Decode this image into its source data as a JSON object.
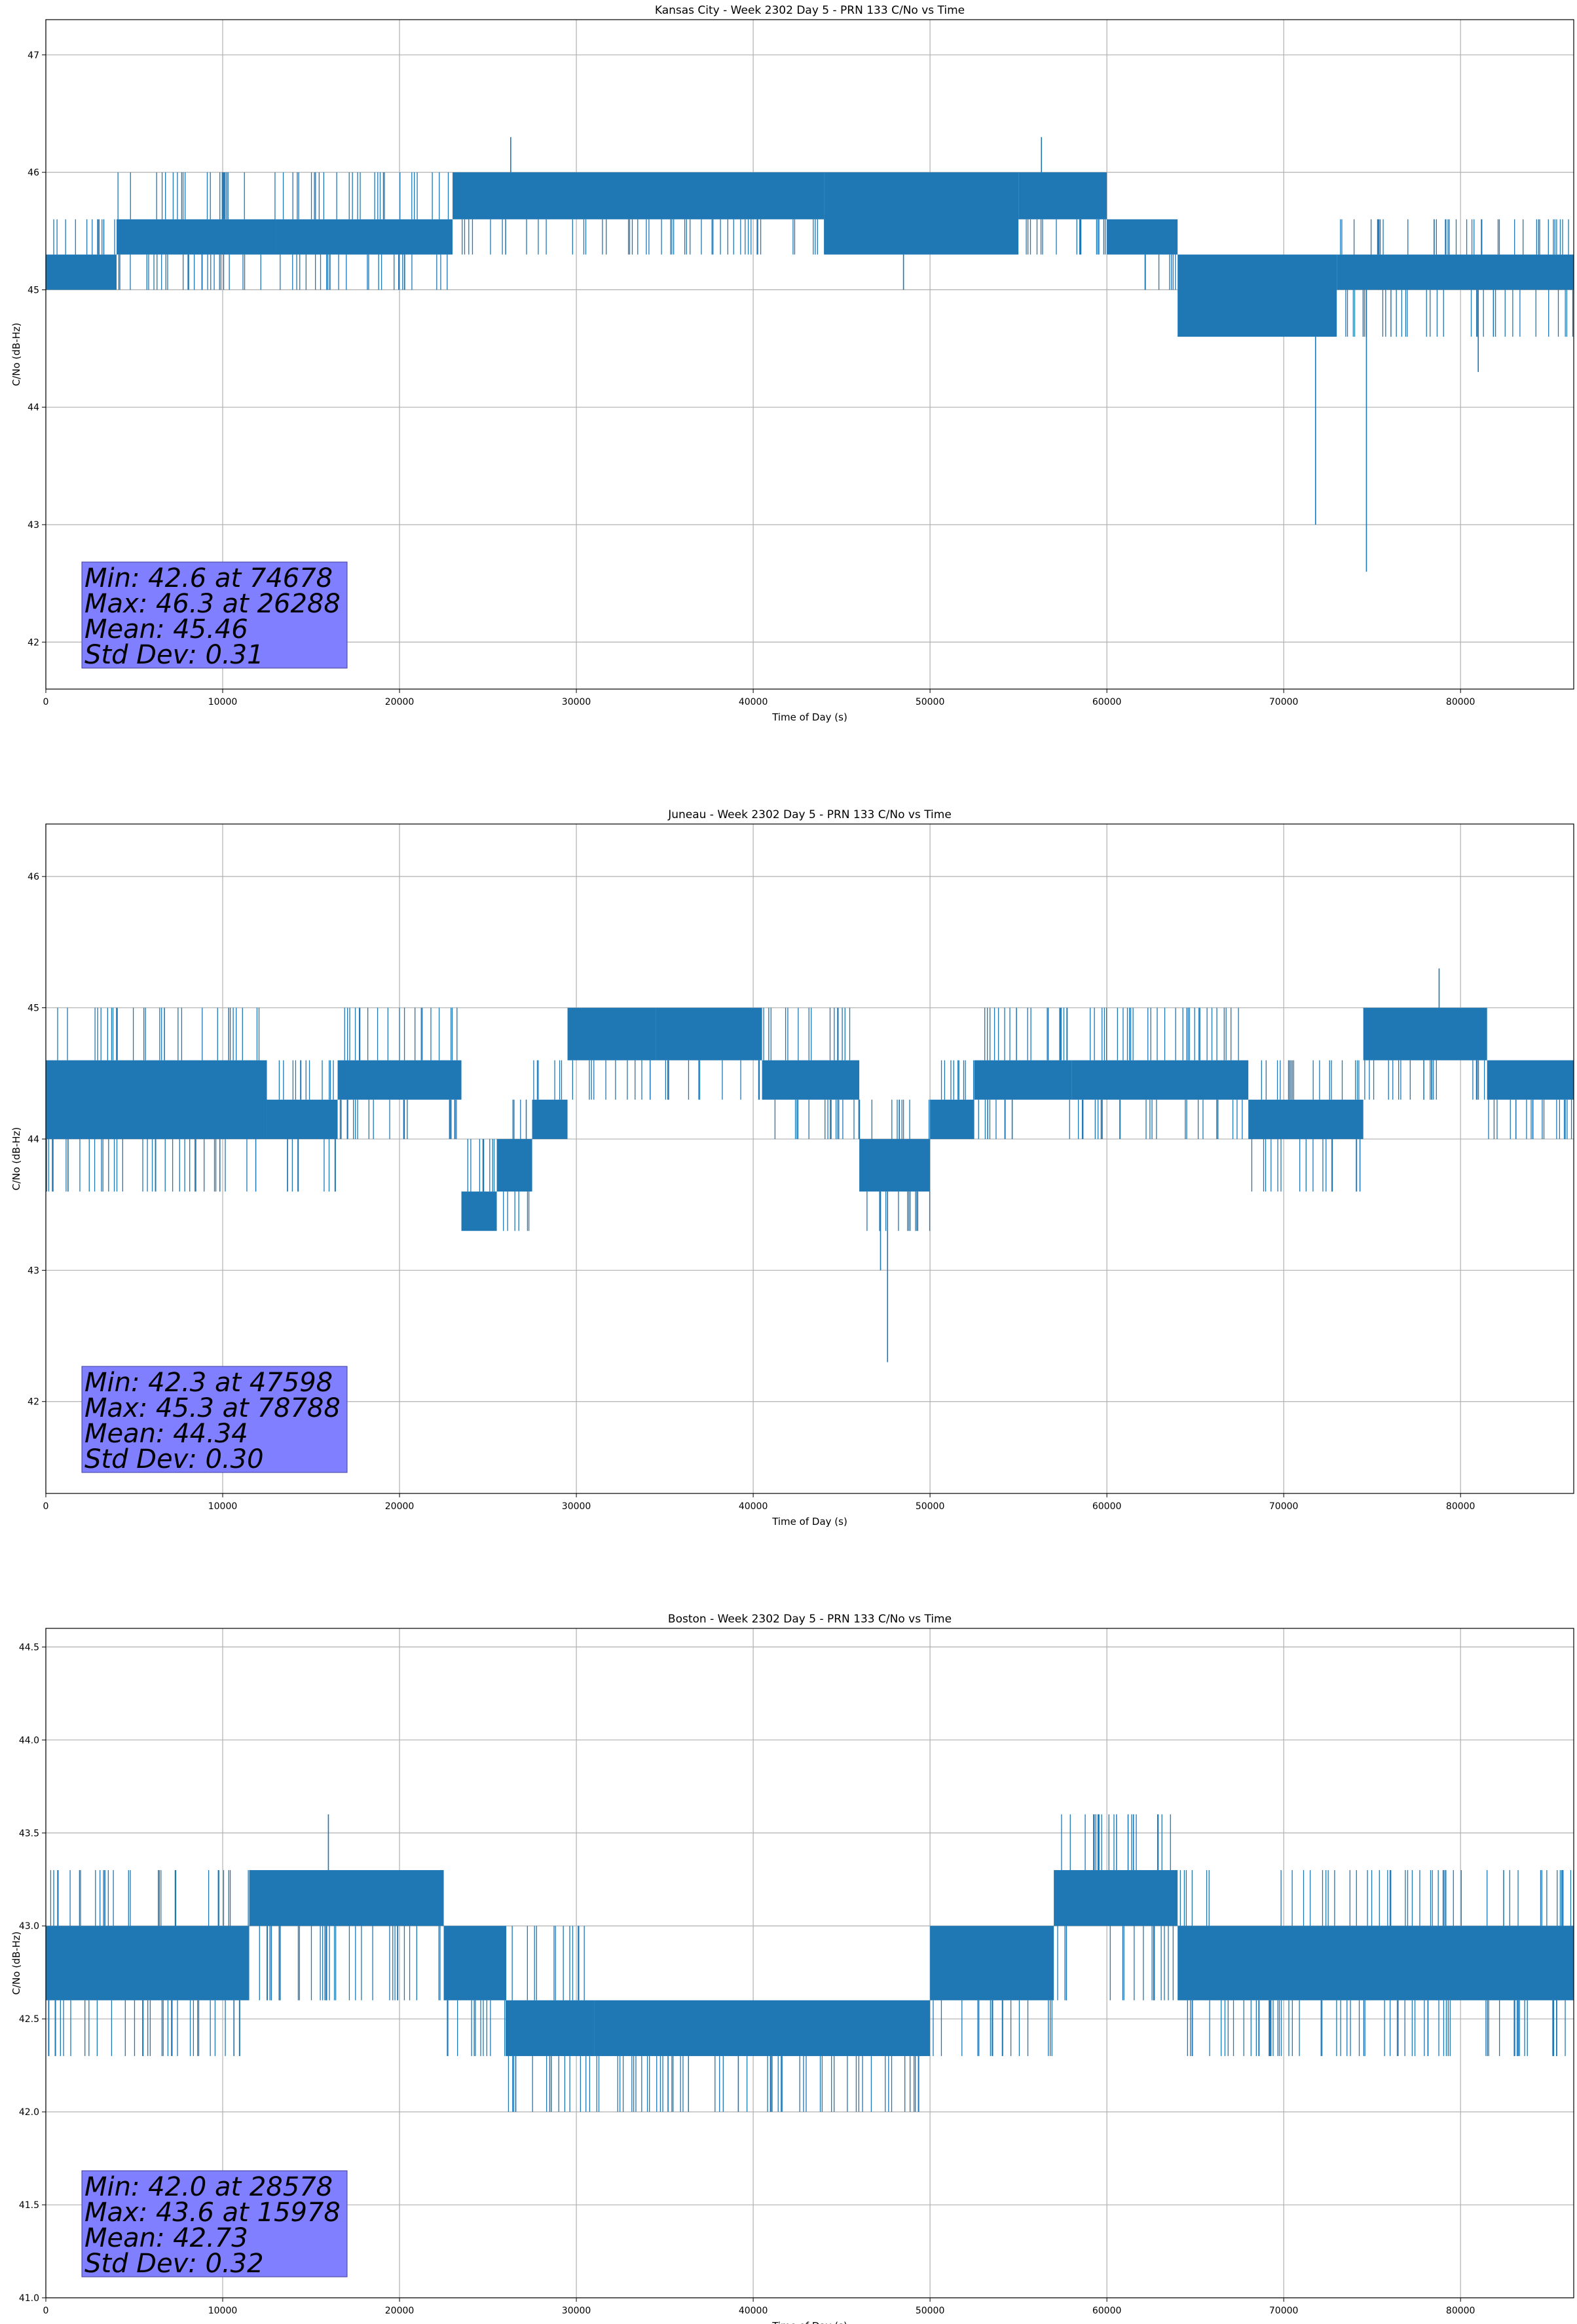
{
  "figure": {
    "background": "#ffffff",
    "series_color": "#1f77b4",
    "stats_box_color": "#7f7fff"
  },
  "chart_data": [
    {
      "type": "line",
      "title": "Kansas City - Week 2302 Day 5 - PRN 133 C/No vs Time",
      "xlabel": "Time of Day (s)",
      "ylabel": "C/No (dB-Hz)",
      "xlim": [
        0,
        86400
      ],
      "ylim": [
        41.6,
        47.3
      ],
      "xticks": [
        "0",
        "10000",
        "20000",
        "30000",
        "40000",
        "50000",
        "60000",
        "70000",
        "80000"
      ],
      "yticks": [
        "42",
        "43",
        "44",
        "45",
        "46",
        "47"
      ],
      "grid": true,
      "stats_lines": [
        "Min: 42.6 at 74678",
        "Max: 46.3 at 26288",
        "Mean: 45.46",
        "Std Dev: 0.31"
      ],
      "min": {
        "value": 42.6,
        "time": 74678
      },
      "max": {
        "value": 46.3,
        "time": 26288
      },
      "mean": 45.46,
      "std": 0.31,
      "segments": [
        {
          "start": 0,
          "end": 4000,
          "low": 45.0,
          "high": 45.3,
          "spike_low": 45.0,
          "spike_high": 45.6
        },
        {
          "start": 4000,
          "end": 13000,
          "low": 45.3,
          "high": 45.6,
          "spike_low": 45.0,
          "spike_high": 46.0
        },
        {
          "start": 13000,
          "end": 23000,
          "low": 45.3,
          "high": 45.6,
          "spike_low": 45.0,
          "spike_high": 46.0
        },
        {
          "start": 23000,
          "end": 44000,
          "low": 45.6,
          "high": 46.0,
          "spike_low": 45.3,
          "spike_high": 46.0
        },
        {
          "start": 44000,
          "end": 55000,
          "low": 45.3,
          "high": 46.0,
          "spike_low": 45.3,
          "spike_high": 46.0
        },
        {
          "start": 55000,
          "end": 60000,
          "low": 45.6,
          "high": 46.0,
          "spike_low": 45.3,
          "spike_high": 46.0
        },
        {
          "start": 60000,
          "end": 64000,
          "low": 45.3,
          "high": 45.6,
          "spike_low": 45.0,
          "spike_high": 45.6
        },
        {
          "start": 64000,
          "end": 73000,
          "low": 44.6,
          "high": 45.3,
          "spike_low": 44.6,
          "spike_high": 45.3
        },
        {
          "start": 73000,
          "end": 86400,
          "low": 45.0,
          "high": 45.3,
          "spike_low": 44.6,
          "spike_high": 45.6
        }
      ],
      "outliers": [
        {
          "x": 26288,
          "y": 46.3
        },
        {
          "x": 56300,
          "y": 46.3
        },
        {
          "x": 48500,
          "y": 45.0
        },
        {
          "x": 71800,
          "y": 43.0
        },
        {
          "x": 74678,
          "y": 42.6
        },
        {
          "x": 81000,
          "y": 44.3
        }
      ]
    },
    {
      "type": "line",
      "title": "Juneau - Week 2302 Day 5 - PRN 133 C/No vs Time",
      "xlabel": "Time of Day (s)",
      "ylabel": "C/No (dB-Hz)",
      "xlim": [
        0,
        86400
      ],
      "ylim": [
        41.3,
        46.4
      ],
      "xticks": [
        "0",
        "10000",
        "20000",
        "30000",
        "40000",
        "50000",
        "60000",
        "70000",
        "80000"
      ],
      "yticks": [
        "42",
        "43",
        "44",
        "45",
        "46"
      ],
      "grid": true,
      "stats_lines": [
        "Min: 42.3 at 47598",
        "Max: 45.3 at 78788",
        "Mean: 44.34",
        "Std Dev: 0.30"
      ],
      "min": {
        "value": 42.3,
        "time": 47598
      },
      "max": {
        "value": 45.3,
        "time": 78788
      },
      "mean": 44.34,
      "std": 0.3,
      "segments": [
        {
          "start": 0,
          "end": 6000,
          "low": 44.0,
          "high": 44.6,
          "spike_low": 43.6,
          "spike_high": 45.0
        },
        {
          "start": 6000,
          "end": 12500,
          "low": 44.0,
          "high": 44.6,
          "spike_low": 43.6,
          "spike_high": 45.0
        },
        {
          "start": 12500,
          "end": 16500,
          "low": 44.0,
          "high": 44.3,
          "spike_low": 43.6,
          "spike_high": 44.6
        },
        {
          "start": 16500,
          "end": 23500,
          "low": 44.3,
          "high": 44.6,
          "spike_low": 44.0,
          "spike_high": 45.0
        },
        {
          "start": 23500,
          "end": 25500,
          "low": 43.3,
          "high": 43.6,
          "spike_low": 43.3,
          "spike_high": 44.0
        },
        {
          "start": 25500,
          "end": 27500,
          "low": 43.6,
          "high": 44.0,
          "spike_low": 43.3,
          "spike_high": 44.3
        },
        {
          "start": 27500,
          "end": 29500,
          "low": 44.0,
          "high": 44.3,
          "spike_low": 44.0,
          "spike_high": 44.6
        },
        {
          "start": 29500,
          "end": 34500,
          "low": 44.6,
          "high": 45.0,
          "spike_low": 44.3,
          "spike_high": 45.0
        },
        {
          "start": 34500,
          "end": 40500,
          "low": 44.6,
          "high": 45.0,
          "spike_low": 44.3,
          "spike_high": 45.0
        },
        {
          "start": 40500,
          "end": 46000,
          "low": 44.3,
          "high": 44.6,
          "spike_low": 44.0,
          "spike_high": 45.0
        },
        {
          "start": 46000,
          "end": 50000,
          "low": 43.6,
          "high": 44.0,
          "spike_low": 43.3,
          "spike_high": 44.3
        },
        {
          "start": 50000,
          "end": 52500,
          "low": 44.0,
          "high": 44.3,
          "spike_low": 44.0,
          "spike_high": 44.6
        },
        {
          "start": 52500,
          "end": 58000,
          "low": 44.3,
          "high": 44.6,
          "spike_low": 44.0,
          "spike_high": 45.0
        },
        {
          "start": 58000,
          "end": 68000,
          "low": 44.3,
          "high": 44.6,
          "spike_low": 44.0,
          "spike_high": 45.0
        },
        {
          "start": 68000,
          "end": 74500,
          "low": 44.0,
          "high": 44.3,
          "spike_low": 43.6,
          "spike_high": 44.6
        },
        {
          "start": 74500,
          "end": 81500,
          "low": 44.6,
          "high": 45.0,
          "spike_low": 44.3,
          "spike_high": 45.0
        },
        {
          "start": 81500,
          "end": 86400,
          "low": 44.3,
          "high": 44.6,
          "spike_low": 44.0,
          "spike_high": 44.6
        }
      ],
      "outliers": [
        {
          "x": 47598,
          "y": 42.3
        },
        {
          "x": 47200,
          "y": 43.0
        },
        {
          "x": 78788,
          "y": 45.3
        }
      ]
    },
    {
      "type": "line",
      "title": "Boston - Week 2302 Day 5 - PRN 133 C/No vs Time",
      "xlabel": "Time of Day (s)",
      "ylabel": "C/No (dB-Hz)",
      "xlim": [
        0,
        86400
      ],
      "ylim": [
        41.0,
        44.6
      ],
      "xticks": [
        "0",
        "10000",
        "20000",
        "30000",
        "40000",
        "50000",
        "60000",
        "70000",
        "80000"
      ],
      "yticks": [
        "41.0",
        "41.5",
        "42.0",
        "42.5",
        "43.0",
        "43.5",
        "44.0",
        "44.5"
      ],
      "grid": true,
      "stats_lines": [
        "Min: 42.0 at 28578",
        "Max: 43.6 at 15978",
        "Mean: 42.73",
        "Std Dev: 0.32"
      ],
      "min": {
        "value": 42.0,
        "time": 28578
      },
      "max": {
        "value": 43.6,
        "time": 15978
      },
      "mean": 42.73,
      "std": 0.32,
      "segments": [
        {
          "start": 0,
          "end": 6500,
          "low": 42.6,
          "high": 43.0,
          "spike_low": 42.3,
          "spike_high": 43.3
        },
        {
          "start": 6500,
          "end": 11500,
          "low": 42.6,
          "high": 43.0,
          "spike_low": 42.3,
          "spike_high": 43.3
        },
        {
          "start": 11500,
          "end": 22500,
          "low": 43.0,
          "high": 43.3,
          "spike_low": 42.6,
          "spike_high": 43.3
        },
        {
          "start": 22500,
          "end": 26000,
          "low": 42.6,
          "high": 43.0,
          "spike_low": 42.3,
          "spike_high": 43.0
        },
        {
          "start": 26000,
          "end": 31000,
          "low": 42.3,
          "high": 42.6,
          "spike_low": 42.0,
          "spike_high": 43.0
        },
        {
          "start": 31000,
          "end": 50000,
          "low": 42.3,
          "high": 42.6,
          "spike_low": 42.0,
          "spike_high": 42.6
        },
        {
          "start": 50000,
          "end": 57000,
          "low": 42.6,
          "high": 43.0,
          "spike_low": 42.3,
          "spike_high": 43.0
        },
        {
          "start": 57000,
          "end": 64000,
          "low": 43.0,
          "high": 43.3,
          "spike_low": 42.6,
          "spike_high": 43.6
        },
        {
          "start": 64000,
          "end": 86400,
          "low": 42.6,
          "high": 43.0,
          "spike_low": 42.3,
          "spike_high": 43.3
        }
      ],
      "outliers": [
        {
          "x": 15978,
          "y": 43.6
        },
        {
          "x": 59500,
          "y": 43.6
        },
        {
          "x": 61200,
          "y": 43.6
        },
        {
          "x": 28578,
          "y": 42.0
        }
      ]
    }
  ]
}
